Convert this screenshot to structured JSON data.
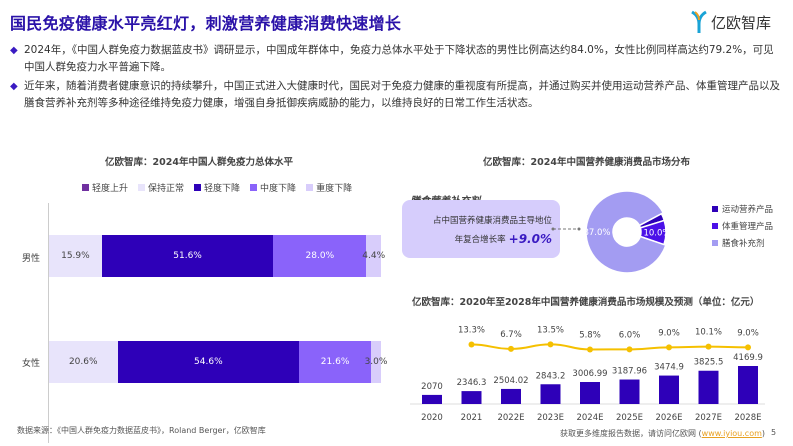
{
  "header": {
    "title": "国民免疫健康水平亮红灯，刺激营养健康消费快速增长",
    "logo_text": "亿欧智库"
  },
  "bullets": [
    "2024年，《中国人群免疫力数据蓝皮书》调研显示，中国成年群体中，免疫力总体水平处于下降状态的男性比例高达约84.0%，女性比例同样高达约79.2%，可见中国人群免疫力水平普遍下降。",
    "近年来，随着消费者健康意识的持续攀升，中国正式进入大健康时代，国民对于免疫力健康的重视度有所提高，并通过购买并使用运动营养产品、体重管理产品以及膳食营养补充剂等多种途径维持免疫力健康，增强自身抵御疾病威胁的能力，以维持良好的日常工作生活状态。"
  ],
  "chart_data": [
    {
      "type": "bar",
      "stacked": true,
      "orientation": "horizontal",
      "title": "亿欧智库：2024年中国人群免疫力总体水平",
      "legend_position": "top",
      "categories": [
        "男性",
        "女性"
      ],
      "series": [
        {
          "name": "轻度上升",
          "color": "#7030a0",
          "values": [
            0,
            0
          ],
          "labels": [
            "",
            ""
          ]
        },
        {
          "name": "保持正常",
          "color": "#e8e4fb",
          "values": [
            15.9,
            20.6
          ],
          "labels": [
            "15.9%",
            "20.6%"
          ]
        },
        {
          "name": "轻度下降",
          "color": "#2e00b8",
          "values": [
            51.6,
            54.6
          ],
          "labels": [
            "51.6%",
            "54.6%"
          ]
        },
        {
          "name": "中度下降",
          "color": "#8a63fa",
          "values": [
            28.0,
            21.6
          ],
          "labels": [
            "28.0%",
            "21.6%"
          ]
        },
        {
          "name": "重度下降",
          "color": "#d8cdfb",
          "values": [
            4.4,
            3.0
          ],
          "labels": [
            "4.4%",
            "3.0%"
          ]
        }
      ]
    },
    {
      "type": "pie",
      "donut": true,
      "title": "亿欧智库：2024年中国营养健康消费品市场分布",
      "legend_position": "right",
      "slices": [
        {
          "name": "运动营养产品",
          "value": 3.0,
          "color": "#2e00b8",
          "label": ""
        },
        {
          "name": "体重管理产品",
          "value": 10.0,
          "color": "#4b10e8",
          "label": "10.0%"
        },
        {
          "name": "膳食补充剂",
          "value": 87.0,
          "color": "#a39cf2",
          "label": "87.0%"
        }
      ],
      "callout": {
        "title": "膳食营养补充剂",
        "line1": "占中国营养健康消费品主导地位",
        "line2_prefix": "年复合增长率",
        "line2_value": "+9.0%"
      }
    },
    {
      "type": "bar+line",
      "title": "亿欧智库：2020年至2028年中国营养健康消费品市场规模及预测（单位：亿元）",
      "categories": [
        "2020",
        "2021",
        "2022E",
        "2023E",
        "2024E",
        "2025E",
        "2026E",
        "2027E",
        "2028E"
      ],
      "bars": {
        "color": "#2e00b8",
        "values": [
          2070,
          2346.3,
          2504.02,
          2843.2,
          3006.99,
          3187.96,
          3474.9,
          3825.5,
          4169.9
        ],
        "labels": [
          "2070",
          "2346.3",
          "2504.02",
          "2843.2",
          "3006.99",
          "3187.96",
          "3474.9",
          "3825.5",
          "4169.9"
        ]
      },
      "line": {
        "color": "#f5c000",
        "values": [
          null,
          13.3,
          6.7,
          13.5,
          5.8,
          6.0,
          9.0,
          10.1,
          9.0
        ],
        "labels": [
          "",
          "13.3%",
          "6.7%",
          "13.5%",
          "5.8%",
          "6.0%",
          "9.0%",
          "10.1%",
          "9.0%"
        ]
      }
    }
  ],
  "footer": {
    "source": "数据来源：《中国人群免疫力数据蓝皮书》，Roland Berger，亿欧智库",
    "more": "获取更多维度报告数据，请访问亿欧网 (",
    "link": "www.iyiou.com",
    "close": ")",
    "page": "5"
  }
}
